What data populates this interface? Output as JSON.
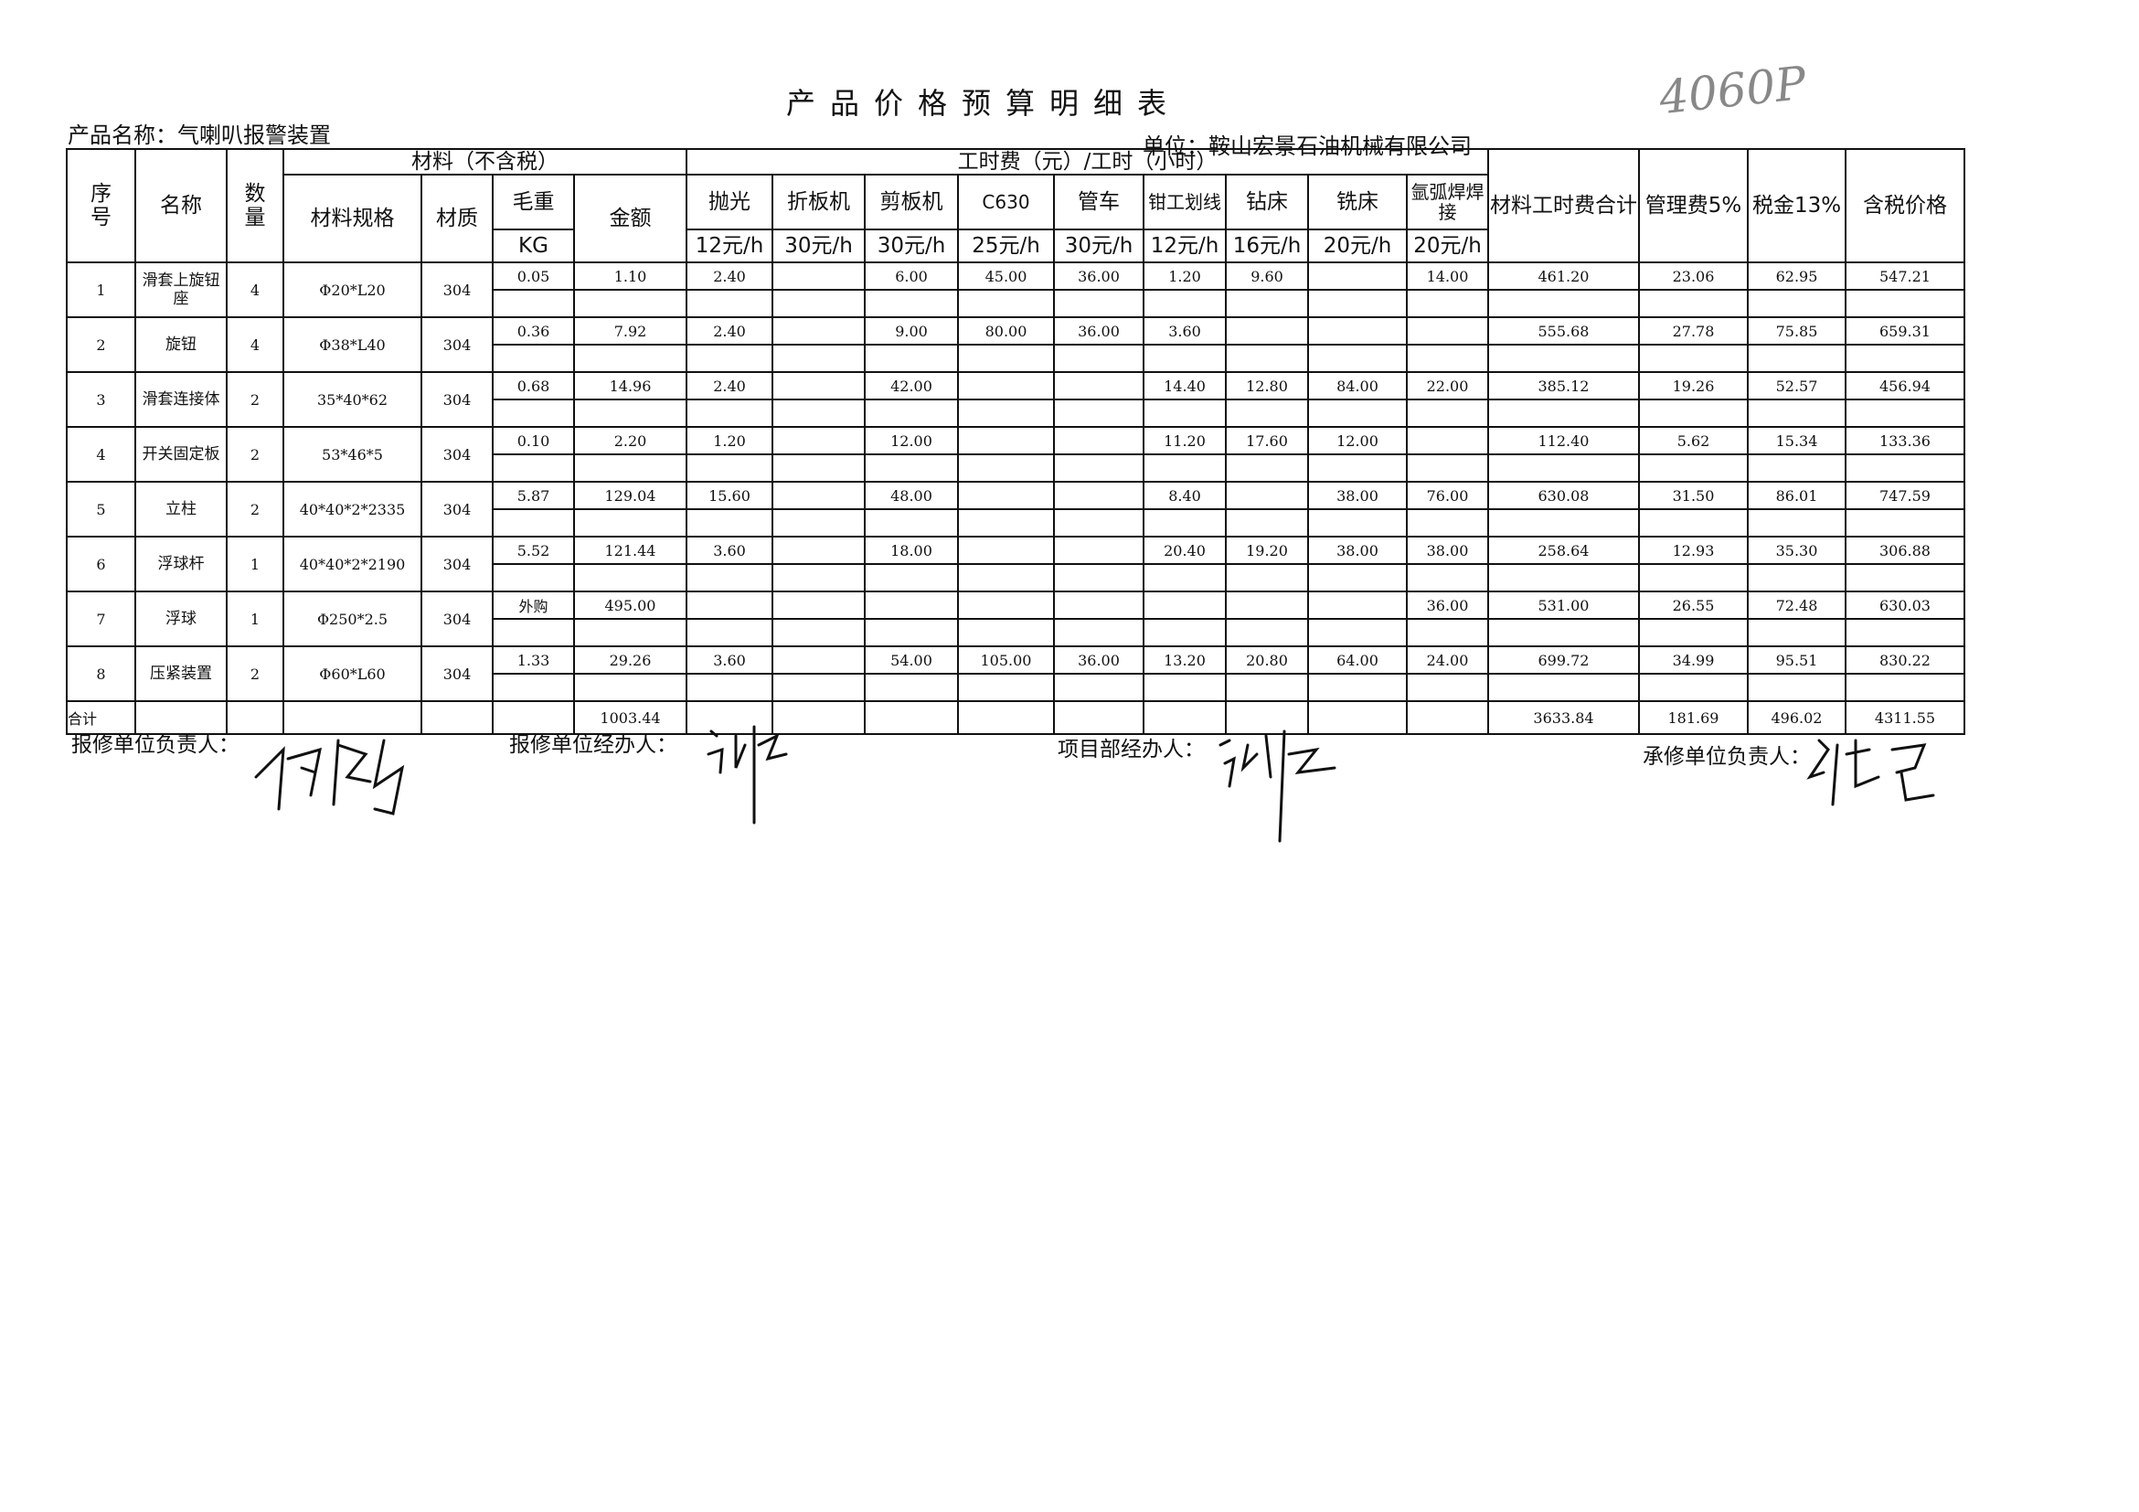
{
  "title": "产品价格预算明细表",
  "handwritten_note": "4060P",
  "product_name": "产品名称：气喇叭报警装置",
  "unit": "单位：鞍山宏景石油机械有限公司",
  "headers": {
    "seq": "序号",
    "name": "名称",
    "qty": "数量",
    "material_group": "材料（不含税）",
    "labor_group": "工时费（元）/工时（小时）",
    "spec": "材料规格",
    "material": "材质",
    "weight": "毛重",
    "weight_unit": "KG",
    "amount": "金额",
    "labor": [
      {
        "name": "抛光",
        "rate": "12元/h"
      },
      {
        "name": "折板机",
        "rate": "30元/h"
      },
      {
        "name": "剪板机",
        "rate": "30元/h"
      },
      {
        "name": "C630",
        "rate": "25元/h"
      },
      {
        "name": "管车",
        "rate": "30元/h"
      },
      {
        "name": "钳工划线",
        "rate": "12元/h"
      },
      {
        "name": "钻床",
        "rate": "16元/h"
      },
      {
        "name": "铣床",
        "rate": "20元/h"
      },
      {
        "name": "氩弧焊焊接",
        "rate": "20元/h"
      }
    ],
    "subtotal": "材料工时费合计",
    "mgmt": "管理费5%",
    "tax": "税金13%",
    "total": "含税价格"
  },
  "rows": [
    {
      "seq": "1",
      "name": "滑套上旋钮座",
      "qty": "4",
      "spec": "Φ20*L20",
      "material": "304",
      "weight": "0.05",
      "amount": "1.10",
      "labor": [
        "2.40",
        "",
        "6.00",
        "45.00",
        "36.00",
        "1.20",
        "9.60",
        "",
        "14.00"
      ],
      "subtotal": "461.20",
      "mgmt": "23.06",
      "tax": "62.95",
      "total": "547.21"
    },
    {
      "seq": "2",
      "name": "旋钮",
      "qty": "4",
      "spec": "Φ38*L40",
      "material": "304",
      "weight": "0.36",
      "amount": "7.92",
      "labor": [
        "2.40",
        "",
        "9.00",
        "80.00",
        "36.00",
        "3.60",
        "",
        "",
        ""
      ],
      "subtotal": "555.68",
      "mgmt": "27.78",
      "tax": "75.85",
      "total": "659.31"
    },
    {
      "seq": "3",
      "name": "滑套连接体",
      "qty": "2",
      "spec": "35*40*62",
      "material": "304",
      "weight": "0.68",
      "amount": "14.96",
      "labor": [
        "2.40",
        "",
        "42.00",
        "",
        "",
        "14.40",
        "12.80",
        "84.00",
        "22.00"
      ],
      "subtotal": "385.12",
      "mgmt": "19.26",
      "tax": "52.57",
      "total": "456.94"
    },
    {
      "seq": "4",
      "name": "开关固定板",
      "qty": "2",
      "spec": "53*46*5",
      "material": "304",
      "weight": "0.10",
      "amount": "2.20",
      "labor": [
        "1.20",
        "",
        "12.00",
        "",
        "",
        "11.20",
        "17.60",
        "12.00",
        ""
      ],
      "subtotal": "112.40",
      "mgmt": "5.62",
      "tax": "15.34",
      "total": "133.36"
    },
    {
      "seq": "5",
      "name": "立柱",
      "qty": "2",
      "spec": "40*40*2*2335",
      "material": "304",
      "weight": "5.87",
      "amount": "129.04",
      "labor": [
        "15.60",
        "",
        "48.00",
        "",
        "",
        "8.40",
        "",
        "38.00",
        "76.00"
      ],
      "subtotal": "630.08",
      "mgmt": "31.50",
      "tax": "86.01",
      "total": "747.59"
    },
    {
      "seq": "6",
      "name": "浮球杆",
      "qty": "1",
      "spec": "40*40*2*2190",
      "material": "304",
      "weight": "5.52",
      "amount": "121.44",
      "labor": [
        "3.60",
        "",
        "18.00",
        "",
        "",
        "20.40",
        "19.20",
        "38.00",
        "38.00"
      ],
      "subtotal": "258.64",
      "mgmt": "12.93",
      "tax": "35.30",
      "total": "306.88"
    },
    {
      "seq": "7",
      "name": "浮球",
      "qty": "1",
      "spec": "Φ250*2.5",
      "material": "304",
      "weight": "外购",
      "amount": "495.00",
      "labor": [
        "",
        "",
        "",
        "",
        "",
        "",
        "",
        "",
        "36.00"
      ],
      "subtotal": "531.00",
      "mgmt": "26.55",
      "tax": "72.48",
      "total": "630.03"
    },
    {
      "seq": "8",
      "name": "压紧装置",
      "qty": "2",
      "spec": "Φ60*L60",
      "material": "304",
      "weight": "1.33",
      "amount": "29.26",
      "labor": [
        "3.60",
        "",
        "54.00",
        "105.00",
        "36.00",
        "13.20",
        "20.80",
        "64.00",
        "24.00"
      ],
      "subtotal": "699.72",
      "mgmt": "34.99",
      "tax": "95.51",
      "total": "830.22"
    }
  ],
  "totals": {
    "label": "合计",
    "amount": "1003.44",
    "subtotal": "3633.84",
    "mgmt": "181.69",
    "tax": "496.02",
    "total": "4311.55"
  },
  "signatures": {
    "repair_unit_head": "报修单位负责人：",
    "repair_unit_handler": "报修单位经办人：",
    "project_handler": "项目部经办人：",
    "contractor_head": "承修单位负责人："
  }
}
